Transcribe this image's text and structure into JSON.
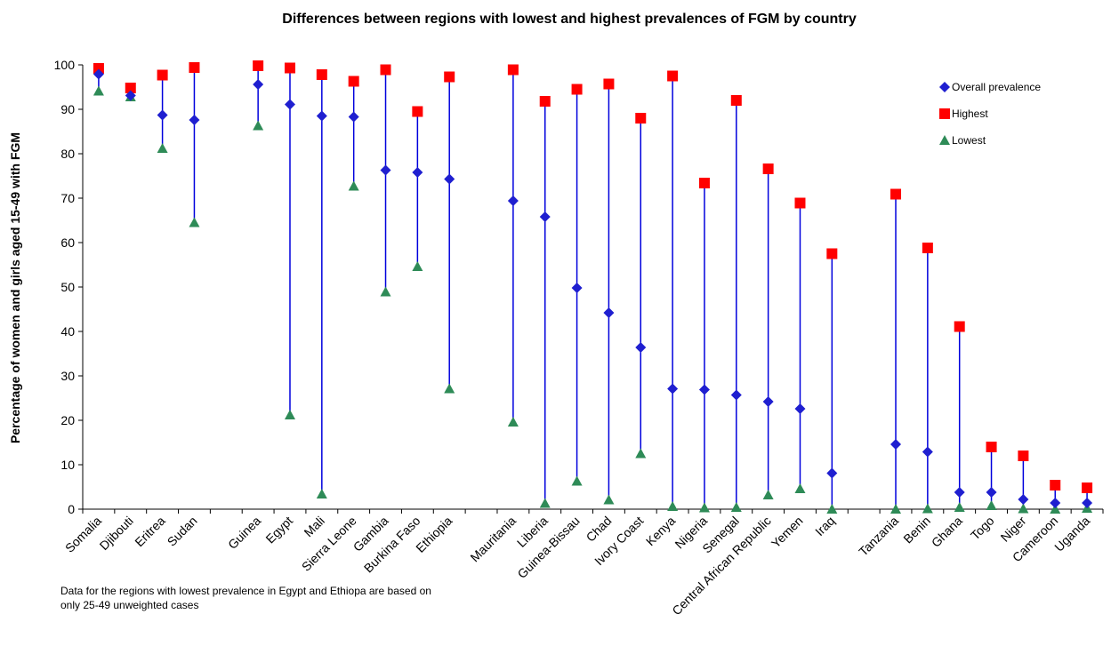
{
  "chart_data": {
    "type": "scatter",
    "title": "Differences between regions with lowest and highest prevalences of FGM by country",
    "ylabel": "Percentage of women and girls aged 15-49 with FGM",
    "xlabel": "",
    "ylim": [
      0,
      100
    ],
    "yticks": [
      0,
      10,
      20,
      30,
      40,
      50,
      60,
      70,
      80,
      90,
      100
    ],
    "grid": false,
    "legend_position": "top-right",
    "categories": [
      "Somalia",
      "Djibouti",
      "Eritrea",
      "Sudan",
      "",
      "Guinea",
      "Egypt",
      "Mali",
      "Sierra Leone",
      "Gambia",
      "Burkina Faso",
      "Ethiopia",
      "",
      "Mauritania",
      "Liberia",
      "Guinea-Bissau",
      "Chad",
      "Ivory Coast",
      "Kenya",
      "Nigeria",
      "Senegal",
      "Central African Republic",
      "Yemen",
      "Iraq",
      "",
      "Tanzania",
      "Benin",
      "Ghana",
      "Togo",
      "Niger",
      "Cameroon",
      "Uganda"
    ],
    "series": [
      {
        "name": "Overall prevalence",
        "marker": "diamond",
        "color": "#1f1fd0",
        "values": [
          97.9,
          93.1,
          88.7,
          87.6,
          null,
          95.6,
          91.1,
          88.5,
          88.3,
          76.3,
          75.8,
          74.3,
          null,
          69.4,
          65.8,
          49.8,
          44.2,
          36.4,
          27.1,
          26.9,
          25.7,
          24.2,
          22.6,
          8.1,
          null,
          14.6,
          12.9,
          3.8,
          3.8,
          2.2,
          1.4,
          1.4
        ]
      },
      {
        "name": "Highest",
        "marker": "square",
        "color": "#ff0000",
        "values": [
          99.2,
          94.8,
          97.7,
          99.4,
          null,
          99.8,
          99.3,
          97.8,
          96.3,
          98.9,
          89.5,
          97.3,
          null,
          98.9,
          91.8,
          94.5,
          95.7,
          88.0,
          97.5,
          73.4,
          92.0,
          76.6,
          68.9,
          57.5,
          null,
          70.9,
          58.8,
          41.1,
          14.0,
          12.0,
          5.4,
          4.8
        ]
      },
      {
        "name": "Lowest",
        "marker": "triangle",
        "color": "#2e8b57",
        "values": [
          94.1,
          92.8,
          81.2,
          64.5,
          null,
          86.3,
          21.2,
          3.4,
          72.7,
          48.9,
          54.6,
          27.1,
          null,
          19.6,
          1.3,
          6.3,
          2.1,
          12.5,
          0.6,
          0.3,
          0.4,
          3.2,
          4.6,
          0.0,
          null,
          0.0,
          0.1,
          0.4,
          0.8,
          0.1,
          0.0,
          0.2
        ]
      }
    ]
  },
  "note": "Data for the regions with lowest prevalence in Egypt and Ethiopa are based on only 25-49 unweighted cases"
}
